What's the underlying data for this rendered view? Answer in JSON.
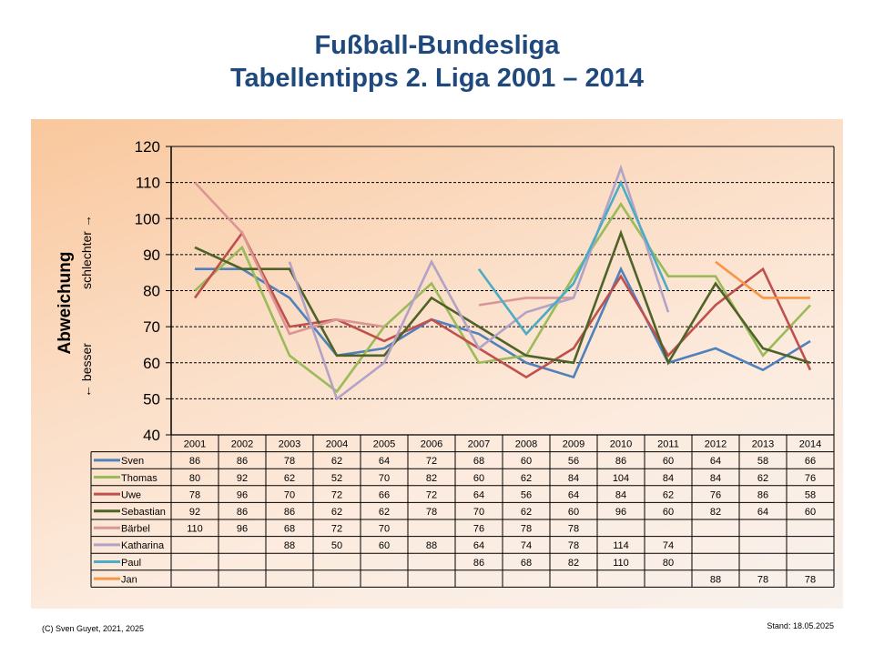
{
  "header": {
    "title_line1": "Fußball-Bundesliga",
    "title_line2": "Tabellentipps 2. Liga 2001 – 2014"
  },
  "footer": {
    "copyright": "(C) Sven Guyet, 2021, 2025",
    "stand": "Stand: 18.05.2025"
  },
  "chart_data": {
    "type": "line",
    "title": "Fußball-Bundesliga Tabellentipps 2. Liga 2001 – 2014",
    "xlabel": "",
    "ylabel": "Abweichung",
    "ylabel_sub_low": "← besser",
    "ylabel_sub_high": "schlechter →",
    "ylim": [
      40,
      120
    ],
    "yticks": [
      40,
      50,
      60,
      70,
      80,
      90,
      100,
      110,
      120
    ],
    "grid": "horizontal-dashed",
    "legend": "data-table-below",
    "categories": [
      "2001",
      "2002",
      "2003",
      "2004",
      "2005",
      "2006",
      "2007",
      "2008",
      "2009",
      "2010",
      "2011",
      "2012",
      "2013",
      "2014"
    ],
    "series": [
      {
        "name": "Sven",
        "color": "#4f81bd",
        "values": [
          86,
          86,
          78,
          62,
          64,
          72,
          68,
          60,
          56,
          86,
          60,
          64,
          58,
          66
        ]
      },
      {
        "name": "Thomas",
        "color": "#9bbb59",
        "values": [
          80,
          92,
          62,
          52,
          70,
          82,
          60,
          62,
          84,
          104,
          84,
          84,
          62,
          76
        ]
      },
      {
        "name": "Uwe",
        "color": "#c0504d",
        "values": [
          78,
          96,
          70,
          72,
          66,
          72,
          64,
          56,
          64,
          84,
          62,
          76,
          86,
          58
        ]
      },
      {
        "name": "Sebastian",
        "color": "#4f6228",
        "values": [
          92,
          86,
          86,
          62,
          62,
          78,
          70,
          62,
          60,
          96,
          60,
          82,
          64,
          60
        ]
      },
      {
        "name": "Bärbel",
        "color": "#d99694",
        "values": [
          110,
          96,
          68,
          72,
          70,
          null,
          76,
          78,
          78,
          null,
          null,
          null,
          null,
          null
        ]
      },
      {
        "name": "Katharina",
        "color": "#b3a2c7",
        "values": [
          null,
          null,
          88,
          50,
          60,
          88,
          64,
          74,
          78,
          114,
          74,
          null,
          null,
          null
        ]
      },
      {
        "name": "Paul",
        "color": "#4bacc6",
        "values": [
          null,
          null,
          null,
          null,
          null,
          null,
          86,
          68,
          82,
          110,
          80,
          null,
          null,
          null
        ]
      },
      {
        "name": "Jan",
        "color": "#f79646",
        "values": [
          null,
          null,
          null,
          null,
          null,
          null,
          null,
          null,
          null,
          null,
          null,
          88,
          78,
          78
        ]
      }
    ]
  }
}
